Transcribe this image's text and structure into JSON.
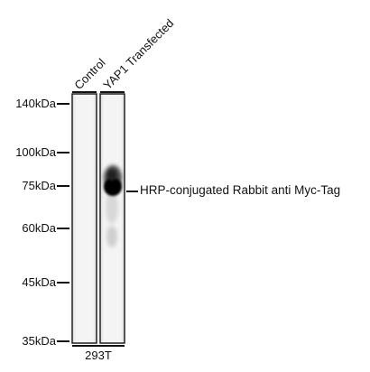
{
  "lanes": [
    {
      "label": "Control"
    },
    {
      "label": "YAP1 Transfected"
    }
  ],
  "markers": [
    {
      "label": "140kDa"
    },
    {
      "label": "100kDa"
    },
    {
      "label": "75kDa"
    },
    {
      "label": "60kDa"
    },
    {
      "label": "45kDa"
    },
    {
      "label": "35kDa"
    }
  ],
  "band": {
    "label": "HRP-conjugated Rabbit anti Myc-Tag"
  },
  "cell_line": "293T"
}
